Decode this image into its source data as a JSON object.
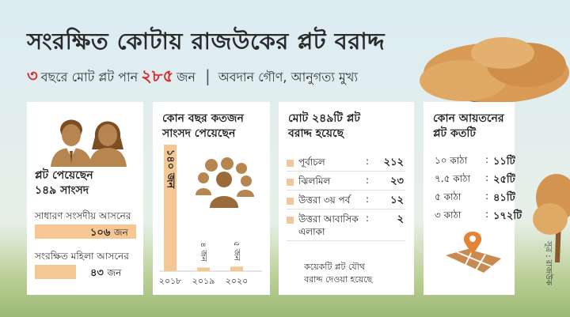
{
  "title": "সংরক্ষিত কোটায় রাজউকের প্লট বরাদ্দ",
  "subtitle": {
    "number_a": "৩",
    "text_a": "বছরে মোট প্লট পান",
    "number_b": "২৮৫",
    "text_b": "জন",
    "separator": "|",
    "tagline": "অবদান গৌণ, আনুগত্য মুখ্য"
  },
  "colors": {
    "accent": "#d92b2b",
    "bar": "#f4c793",
    "icon": "#b78650",
    "map": "#c98a4f",
    "pin": "#e28437"
  },
  "card1": {
    "heading": [
      "প্লট পেয়েছেন",
      "১৪৯ সাংসদ"
    ],
    "rows": [
      {
        "label": "সাধারণ সংসদীয় আসনের",
        "value_text": "১০৬",
        "unit": "জন",
        "value": 106
      },
      {
        "label": "সংরক্ষিত মহিলা আসনের",
        "value_text": "৪৩",
        "unit": "জন",
        "value": 43
      }
    ]
  },
  "chart_data": {
    "type": "bar",
    "title": "কোন বছর কতজন সাংসদ পেয়েছেন",
    "categories": [
      "২০১৮",
      "২০১৯",
      "২০২০"
    ],
    "values": [
      140,
      4,
      5
    ],
    "value_labels": [
      "১৪০ জন",
      "৪ জন",
      "৫ জন"
    ],
    "ylim": [
      0,
      140
    ]
  },
  "card3": {
    "heading": [
      "মোট ২৪৯টি প্লট",
      "বরাদ্দ হয়েছে"
    ],
    "rows": [
      {
        "label": "পূর্বাচল",
        "value": "২১২"
      },
      {
        "label": "ঝিলমিল",
        "value": "২৩"
      },
      {
        "label": "উত্তরা ৩য় পর্ব",
        "value": "১২"
      },
      {
        "label": "উত্তরা আবাসিক",
        "label2": "এলাকা",
        "value": "২"
      }
    ],
    "colon": ":",
    "note": [
      "কয়েকটি প্লট যৌথ",
      "বরাদ্দ দেওয়া হয়েছে"
    ]
  },
  "card4": {
    "heading": [
      "কোন আয়তনের",
      "প্লট কতটি"
    ],
    "rows": [
      {
        "label": "১০ কাঠা",
        "value": "১১টি"
      },
      {
        "label": "৭.৫ কাঠা",
        "value": "২৫টি"
      },
      {
        "label": "৫ কাঠা",
        "value": "৪১টি"
      },
      {
        "label": "৩ কাঠা",
        "value": "১৭২টি"
      }
    ],
    "colon": ":"
  },
  "source": "সূত্র : রাজউক",
  "icons": [
    "tree-icon",
    "people-icon",
    "group-icon",
    "map-pin-icon"
  ]
}
